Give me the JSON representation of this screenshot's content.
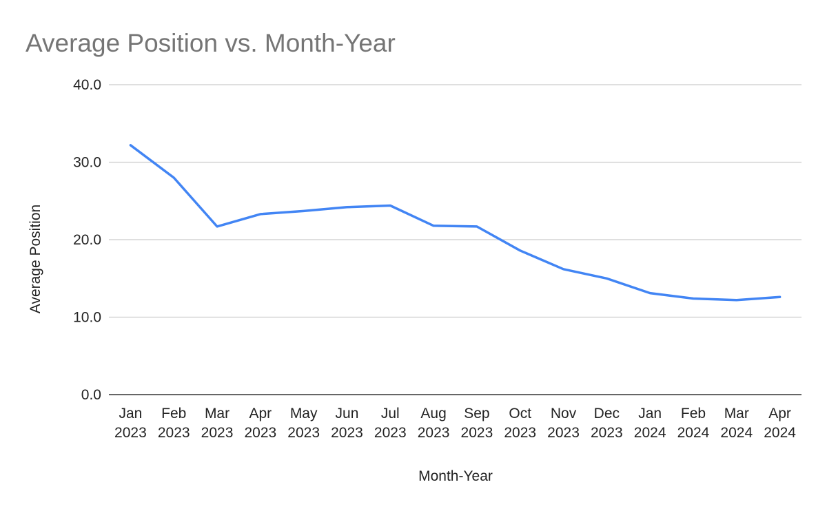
{
  "chart_data": {
    "type": "line",
    "title": "Average Position vs. Month-Year",
    "xlabel": "Month-Year",
    "ylabel": "Average Position",
    "ylim": [
      0,
      40
    ],
    "yticks": [
      "0.0",
      "10.0",
      "20.0",
      "30.0",
      "40.0"
    ],
    "categories": [
      [
        "Jan",
        "2023"
      ],
      [
        "Feb",
        "2023"
      ],
      [
        "Mar",
        "2023"
      ],
      [
        "Apr",
        "2023"
      ],
      [
        "May",
        "2023"
      ],
      [
        "Jun",
        "2023"
      ],
      [
        "Jul",
        "2023"
      ],
      [
        "Aug",
        "2023"
      ],
      [
        "Sep",
        "2023"
      ],
      [
        "Oct",
        "2023"
      ],
      [
        "Nov",
        "2023"
      ],
      [
        "Dec",
        "2023"
      ],
      [
        "Jan",
        "2024"
      ],
      [
        "Feb",
        "2024"
      ],
      [
        "Mar",
        "2024"
      ],
      [
        "Apr",
        "2024"
      ]
    ],
    "series": [
      {
        "values": [
          32.2,
          28.0,
          21.7,
          23.3,
          23.7,
          24.2,
          24.4,
          21.8,
          21.7,
          18.6,
          16.2,
          15.0,
          13.1,
          12.4,
          12.2,
          12.6
        ],
        "color": "#4285f4"
      }
    ],
    "grid": true,
    "legend": "none"
  }
}
